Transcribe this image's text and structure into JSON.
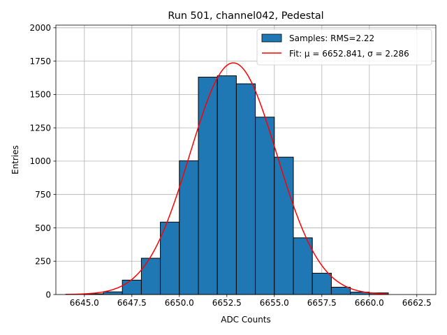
{
  "chart_data": {
    "type": "bar",
    "title": "Run 501, channel042, Pedestal",
    "xlabel": "ADC Counts",
    "ylabel": "Entries",
    "xlim": [
      6643.5,
      6663.5
    ],
    "ylim": [
      0,
      2020
    ],
    "grid": true,
    "legend_position": "top-right",
    "x_ticks": [
      6645.0,
      6647.5,
      6650.0,
      6652.5,
      6655.0,
      6657.5,
      6660.0,
      6662.5
    ],
    "x_tick_labels": [
      "6645.0",
      "6647.5",
      "6650.0",
      "6652.5",
      "6655.0",
      "6657.5",
      "6660.0",
      "6662.5"
    ],
    "y_ticks": [
      0,
      250,
      500,
      750,
      1000,
      1250,
      1500,
      1750,
      2000
    ],
    "y_tick_labels": [
      "0",
      "250",
      "500",
      "750",
      "1000",
      "1250",
      "1500",
      "1750",
      "2000"
    ],
    "histogram": {
      "name": "Samples: RMS=2.22",
      "color": "#1f77b4",
      "edge_color": "#000000",
      "bins": [
        {
          "x0": 6645,
          "x1": 6646,
          "count": 5
        },
        {
          "x0": 6646,
          "x1": 6647,
          "count": 20
        },
        {
          "x0": 6647,
          "x1": 6648,
          "count": 108
        },
        {
          "x0": 6648,
          "x1": 6649,
          "count": 272
        },
        {
          "x0": 6649,
          "x1": 6650,
          "count": 543
        },
        {
          "x0": 6650,
          "x1": 6651,
          "count": 1003
        },
        {
          "x0": 6651,
          "x1": 6652,
          "count": 1630
        },
        {
          "x0": 6652,
          "x1": 6653,
          "count": 1640
        },
        {
          "x0": 6653,
          "x1": 6654,
          "count": 1580
        },
        {
          "x0": 6654,
          "x1": 6655,
          "count": 1330
        },
        {
          "x0": 6655,
          "x1": 6656,
          "count": 1030
        },
        {
          "x0": 6656,
          "x1": 6657,
          "count": 425
        },
        {
          "x0": 6657,
          "x1": 6658,
          "count": 160
        },
        {
          "x0": 6658,
          "x1": 6659,
          "count": 55
        },
        {
          "x0": 6659,
          "x1": 6660,
          "count": 18
        },
        {
          "x0": 6660,
          "x1": 6661,
          "count": 12
        }
      ]
    },
    "fit": {
      "name": "Fit: μ = 6652.841, σ = 2.286",
      "color": "#ff0000",
      "mu": 6652.841,
      "sigma": 2.286,
      "peak": 1737,
      "x_range": [
        6644.0,
        6661.0
      ]
    }
  }
}
